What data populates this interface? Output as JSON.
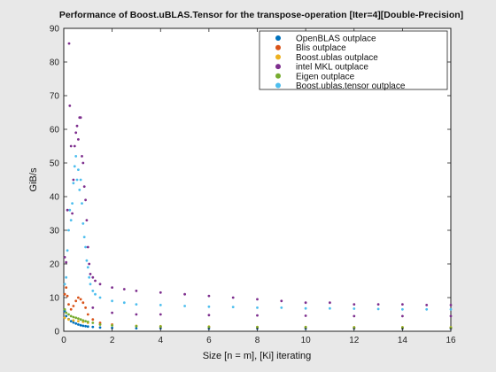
{
  "chart_data": {
    "type": "scatter",
    "title": "Performance of Boost.uBLAS.Tensor for the transpose-operation [Iter=4][Double-Precision]",
    "xlabel": "Size [n = m], [Ki] iterating",
    "ylabel": "GiB/s",
    "xlim": [
      0,
      16
    ],
    "ylim": [
      0,
      90
    ],
    "xticks": [
      "0",
      "2",
      "4",
      "6",
      "8",
      "10",
      "12",
      "14",
      "16"
    ],
    "yticks": [
      "0",
      "10",
      "20",
      "30",
      "40",
      "50",
      "60",
      "70",
      "80",
      "90"
    ],
    "grid": false,
    "legend_position": "top-right",
    "series": [
      {
        "name": "OpenBLAS outplace",
        "color": "#0072bd",
        "points": [
          [
            0.04,
            6.0
          ],
          [
            0.1,
            4.5
          ],
          [
            0.2,
            3.6
          ],
          [
            0.3,
            3.0
          ],
          [
            0.4,
            2.6
          ],
          [
            0.5,
            2.3
          ],
          [
            0.6,
            2.0
          ],
          [
            0.7,
            1.8
          ],
          [
            0.8,
            1.6
          ],
          [
            0.9,
            1.5
          ],
          [
            1.0,
            1.4
          ],
          [
            1.2,
            1.3
          ],
          [
            1.5,
            1.1
          ],
          [
            2.0,
            1.0
          ],
          [
            3.0,
            0.9
          ],
          [
            4.0,
            0.9
          ],
          [
            6.0,
            0.8
          ],
          [
            8.0,
            0.8
          ],
          [
            10.0,
            0.8
          ],
          [
            12.0,
            0.8
          ],
          [
            14.0,
            0.8
          ],
          [
            16.0,
            0.8
          ]
        ]
      },
      {
        "name": "Blis outplace",
        "color": "#d95319",
        "points": [
          [
            0.04,
            11.0
          ],
          [
            0.1,
            13.0
          ],
          [
            0.15,
            10.5
          ],
          [
            0.2,
            8.0
          ],
          [
            0.3,
            6.5
          ],
          [
            0.4,
            7.5
          ],
          [
            0.5,
            9.0
          ],
          [
            0.6,
            10.0
          ],
          [
            0.7,
            9.5
          ],
          [
            0.8,
            8.5
          ],
          [
            0.9,
            7.0
          ],
          [
            1.0,
            5.0
          ],
          [
            1.2,
            3.5
          ],
          [
            1.5,
            2.5
          ],
          [
            2.0,
            2.0
          ],
          [
            3.0,
            1.5
          ],
          [
            4.0,
            1.3
          ],
          [
            6.0,
            1.2
          ],
          [
            8.0,
            1.1
          ],
          [
            10.0,
            1.1
          ],
          [
            12.0,
            1.0
          ],
          [
            14.0,
            1.0
          ],
          [
            16.0,
            1.0
          ]
        ]
      },
      {
        "name": "Boost.ublas outplace",
        "color": "#edb120",
        "points": [
          [
            0.04,
            4.0
          ],
          [
            0.2,
            3.5
          ],
          [
            0.4,
            3.2
          ],
          [
            0.6,
            3.0
          ],
          [
            0.8,
            2.8
          ],
          [
            1.0,
            2.5
          ],
          [
            1.5,
            2.0
          ],
          [
            2.0,
            1.8
          ],
          [
            3.0,
            1.6
          ],
          [
            4.0,
            1.5
          ],
          [
            6.0,
            1.4
          ],
          [
            8.0,
            1.3
          ],
          [
            10.0,
            1.3
          ],
          [
            12.0,
            1.2
          ],
          [
            14.0,
            1.2
          ],
          [
            16.0,
            1.2
          ]
        ]
      },
      {
        "name": "intel MKL outplace",
        "color": "#7e2f8e",
        "points": [
          [
            0.04,
            22.0
          ],
          [
            0.1,
            20.5
          ],
          [
            0.15,
            36.0
          ],
          [
            0.22,
            85.5
          ],
          [
            0.25,
            67.0
          ],
          [
            0.3,
            55.0
          ],
          [
            0.35,
            35.0
          ],
          [
            0.4,
            45.0
          ],
          [
            0.45,
            55.0
          ],
          [
            0.5,
            59.0
          ],
          [
            0.55,
            61.0
          ],
          [
            0.6,
            57.0
          ],
          [
            0.65,
            63.5
          ],
          [
            0.7,
            63.5
          ],
          [
            0.75,
            52.0
          ],
          [
            0.8,
            50.0
          ],
          [
            0.85,
            43.0
          ],
          [
            0.9,
            39.0
          ],
          [
            0.95,
            33.0
          ],
          [
            1.0,
            25.0
          ],
          [
            1.05,
            20.0
          ],
          [
            1.1,
            17.0
          ],
          [
            1.2,
            16.0
          ],
          [
            1.3,
            15.0
          ],
          [
            1.5,
            14.0
          ],
          [
            2.0,
            13.0
          ],
          [
            2.5,
            12.5
          ],
          [
            3.0,
            12.0
          ],
          [
            4.0,
            11.5
          ],
          [
            5.0,
            11.0
          ],
          [
            6.0,
            10.5
          ],
          [
            7.0,
            10.0
          ],
          [
            8.0,
            9.5
          ],
          [
            9.0,
            9.0
          ],
          [
            10.0,
            8.5
          ],
          [
            11.0,
            8.5
          ],
          [
            12.0,
            8.0
          ],
          [
            13.0,
            8.0
          ],
          [
            14.0,
            8.0
          ],
          [
            15.0,
            7.8
          ],
          [
            16.0,
            7.8
          ],
          [
            1.2,
            7.0
          ],
          [
            2.0,
            5.5
          ],
          [
            3.0,
            5.0
          ],
          [
            4.0,
            5.0
          ],
          [
            6.0,
            4.8
          ],
          [
            8.0,
            4.7
          ],
          [
            10.0,
            4.6
          ],
          [
            12.0,
            4.5
          ],
          [
            14.0,
            4.5
          ],
          [
            16.0,
            4.5
          ]
        ]
      },
      {
        "name": "Eigen outplace",
        "color": "#77ac30",
        "points": [
          [
            0.04,
            6.5
          ],
          [
            0.1,
            5.5
          ],
          [
            0.2,
            5.0
          ],
          [
            0.3,
            4.5
          ],
          [
            0.4,
            4.2
          ],
          [
            0.5,
            4.0
          ],
          [
            0.6,
            3.8
          ],
          [
            0.7,
            3.5
          ],
          [
            0.8,
            3.2
          ],
          [
            0.9,
            3.0
          ],
          [
            1.0,
            2.8
          ],
          [
            1.2,
            2.5
          ],
          [
            1.5,
            2.0
          ],
          [
            2.0,
            1.7
          ],
          [
            3.0,
            1.5
          ],
          [
            4.0,
            1.4
          ],
          [
            6.0,
            1.3
          ],
          [
            8.0,
            1.2
          ],
          [
            10.0,
            1.2
          ],
          [
            12.0,
            1.1
          ],
          [
            14.0,
            1.1
          ],
          [
            16.0,
            1.1
          ]
        ]
      },
      {
        "name": "Boost.ublas.tensor outplace",
        "color": "#4dbeee",
        "points": [
          [
            0.04,
            14.0
          ],
          [
            0.1,
            16.0
          ],
          [
            0.15,
            24.0
          ],
          [
            0.2,
            30.0
          ],
          [
            0.25,
            36.0
          ],
          [
            0.3,
            33.0
          ],
          [
            0.35,
            38.0
          ],
          [
            0.4,
            44.0
          ],
          [
            0.45,
            49.0
          ],
          [
            0.5,
            52.0
          ],
          [
            0.55,
            45.0
          ],
          [
            0.6,
            48.0
          ],
          [
            0.65,
            42.0
          ],
          [
            0.7,
            45.0
          ],
          [
            0.75,
            38.0
          ],
          [
            0.8,
            32.0
          ],
          [
            0.85,
            28.0
          ],
          [
            0.9,
            25.0
          ],
          [
            0.95,
            21.0
          ],
          [
            1.0,
            19.0
          ],
          [
            1.05,
            16.0
          ],
          [
            1.1,
            14.0
          ],
          [
            1.2,
            12.0
          ],
          [
            1.3,
            11.0
          ],
          [
            1.5,
            10.0
          ],
          [
            2.0,
            9.0
          ],
          [
            2.5,
            8.5
          ],
          [
            3.0,
            8.0
          ],
          [
            4.0,
            7.8
          ],
          [
            5.0,
            7.5
          ],
          [
            6.0,
            7.3
          ],
          [
            7.0,
            7.2
          ],
          [
            8.0,
            7.0
          ],
          [
            9.0,
            7.0
          ],
          [
            10.0,
            6.8
          ],
          [
            11.0,
            6.8
          ],
          [
            12.0,
            6.7
          ],
          [
            13.0,
            6.6
          ],
          [
            14.0,
            6.5
          ],
          [
            15.0,
            6.5
          ],
          [
            16.0,
            6.5
          ]
        ]
      }
    ]
  }
}
